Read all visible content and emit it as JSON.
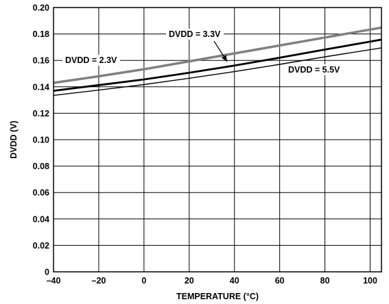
{
  "chart_data": {
    "type": "line",
    "xlabel": "TEMPERATURE (°C)",
    "ylabel": "DVDD (V)",
    "xlim": [
      -40,
      105
    ],
    "ylim": [
      0,
      0.2
    ],
    "xticks": [
      -40,
      -20,
      0,
      20,
      40,
      60,
      80,
      100
    ],
    "xtick_labels": [
      "–40",
      "–20",
      "0",
      "20",
      "40",
      "60",
      "80",
      "100"
    ],
    "yticks": [
      0,
      0.02,
      0.04,
      0.06,
      0.08,
      0.1,
      0.12,
      0.14,
      0.16,
      0.18,
      0.2
    ],
    "ytick_labels": [
      "0",
      "0.02",
      "0.04",
      "0.06",
      "0.08",
      "0.10",
      "0.12",
      "0.14",
      "0.16",
      "0.18",
      "0.20"
    ],
    "grid": true,
    "series": [
      {
        "name": "DVDD = 2.3V",
        "color": "#808080",
        "x": [
          -40,
          -20,
          0,
          20,
          40,
          60,
          80,
          105
        ],
        "y": [
          0.143,
          0.148,
          0.1533,
          0.1593,
          0.1653,
          0.1713,
          0.1773,
          0.1848
        ]
      },
      {
        "name": "DVDD = 3.3V",
        "color": "#000000",
        "x": [
          -40,
          -20,
          0,
          20,
          40,
          60,
          80,
          105
        ],
        "y": [
          0.137,
          0.1413,
          0.1456,
          0.1506,
          0.1561,
          0.162,
          0.1682,
          0.1757
        ]
      },
      {
        "name": "DVDD = 5.5V",
        "color": "#000000",
        "x": [
          -40,
          -20,
          0,
          20,
          40,
          60,
          80,
          105
        ],
        "y": [
          0.1335,
          0.1375,
          0.1417,
          0.1465,
          0.1515,
          0.157,
          0.1627,
          0.1695
        ]
      }
    ],
    "annotations": [
      {
        "text": "DVDD = 2.3V",
        "series": "DVDD = 2.3V"
      },
      {
        "text": "DVDD = 3.3V",
        "series": "DVDD = 3.3V"
      },
      {
        "text": "DVDD = 5.5V",
        "series": "DVDD = 5.5V"
      }
    ]
  }
}
